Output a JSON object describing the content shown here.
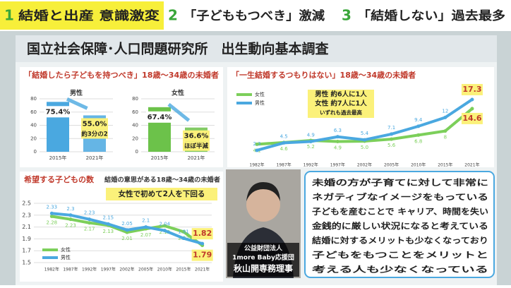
{
  "header": {
    "items": [
      {
        "number": "1",
        "text": "結婚と出産 意識激変"
      },
      {
        "number": "2",
        "text": "「子どももつべき」激減"
      },
      {
        "number": "3",
        "text": "「結婚しない」過去最多"
      }
    ]
  },
  "panel_title": "国立社会保障･人口問題研究所　出生動向基本調査",
  "chart_data": [
    {
      "type": "bar",
      "title": "「結婚したら子どもを持つべき」18歳～34歳の未婚者",
      "subtitle": "男性",
      "categories": [
        "2015年",
        "2021年"
      ],
      "values": [
        75.4,
        55.0
      ],
      "value_labels": [
        "75.4%",
        "55.0%"
      ],
      "color": "#4aa8e0",
      "ylim": [
        0,
        80
      ],
      "yticks": [
        0,
        20,
        40,
        60,
        80
      ],
      "grid": true,
      "annotation": "約3分の2"
    },
    {
      "type": "bar",
      "subtitle": "女性",
      "categories": [
        "2015年",
        "2021年"
      ],
      "values": [
        67.4,
        36.6
      ],
      "value_labels": [
        "67.4%",
        "36.6%"
      ],
      "color": "#6cc24a",
      "ylim": [
        0,
        80
      ],
      "yticks": [
        0,
        20,
        40,
        60,
        80
      ],
      "grid": true,
      "annotation": "ほぼ半減"
    },
    {
      "type": "line",
      "title": "「一生結婚するつもりはない」18歳～34歳の未婚者",
      "categories": [
        "1982年",
        "1987年",
        "1992年",
        "1997年",
        "2002年",
        "2005年",
        "2010年",
        "2015年",
        "2021年"
      ],
      "series": [
        {
          "name": "女性",
          "color": "#7ccf5a",
          "values": [
            4.1,
            4.6,
            5.2,
            4.9,
            5.0,
            5.6,
            6.8,
            8,
            14.6
          ],
          "value_labels": [
            "4.1",
            "4.6",
            "5.2",
            "4.9",
            "5.0",
            "5.6",
            "6.8",
            "8",
            "14.6"
          ]
        },
        {
          "name": "男性",
          "color": "#4aa8e0",
          "values": [
            2.3,
            4.5,
            4.9,
            6.3,
            5.4,
            7.1,
            9.4,
            12,
            17.3
          ],
          "value_labels": [
            "2.3",
            "4.5",
            "4.9",
            "6.3",
            "5.4",
            "7.1",
            "9.4",
            "12",
            "17.3"
          ]
        }
      ],
      "ylim": [
        0,
        20
      ],
      "legend": "upper left",
      "annotation": [
        "男性 約6人に1人",
        "女性 約7人に1人",
        "いずれも過去最高"
      ]
    },
    {
      "type": "line",
      "title": "希望する子どもの数",
      "subtitle": "結婚の意思がある18歳～34歳の未婚者",
      "categories": [
        "1982年",
        "1987年",
        "1992年",
        "1997年",
        "2002年",
        "2005年",
        "2010年",
        "2015年",
        "2021年"
      ],
      "series": [
        {
          "name": "女性",
          "color": "#7ccf5a",
          "values": [
            2.28,
            2.23,
            2.17,
            2.13,
            2.01,
            2.07,
            2.12,
            2.02,
            1.79
          ]
        },
        {
          "name": "男性",
          "color": "#4aa8e0",
          "values": [
            2.33,
            2.3,
            2.23,
            2.15,
            2.05,
            2.1,
            2.04,
            1.91,
            1.82
          ]
        }
      ],
      "ylim": [
        1.5,
        2.5
      ],
      "yticks": [
        1.5,
        1.7,
        1.9,
        2.1,
        2.3,
        2.5
      ],
      "grid": true,
      "legend": "lower left",
      "annotation": "女性で初めて2人を下回る"
    }
  ],
  "person": {
    "caption": [
      "公益財団法人",
      "1more Baby応援団",
      "秋山開専務理事"
    ]
  },
  "quote": [
    "未婚の方が子育てに対して非常に",
    "ネガティブなイメージをもっている",
    "子どもを産むことで キャリア、時間を失い",
    "金銭的に厳しい状況になると考えている",
    "結婚に対するメリットも少なくなっており",
    "子どもをもつことをメリットと",
    "考える人も少なくなっている"
  ]
}
